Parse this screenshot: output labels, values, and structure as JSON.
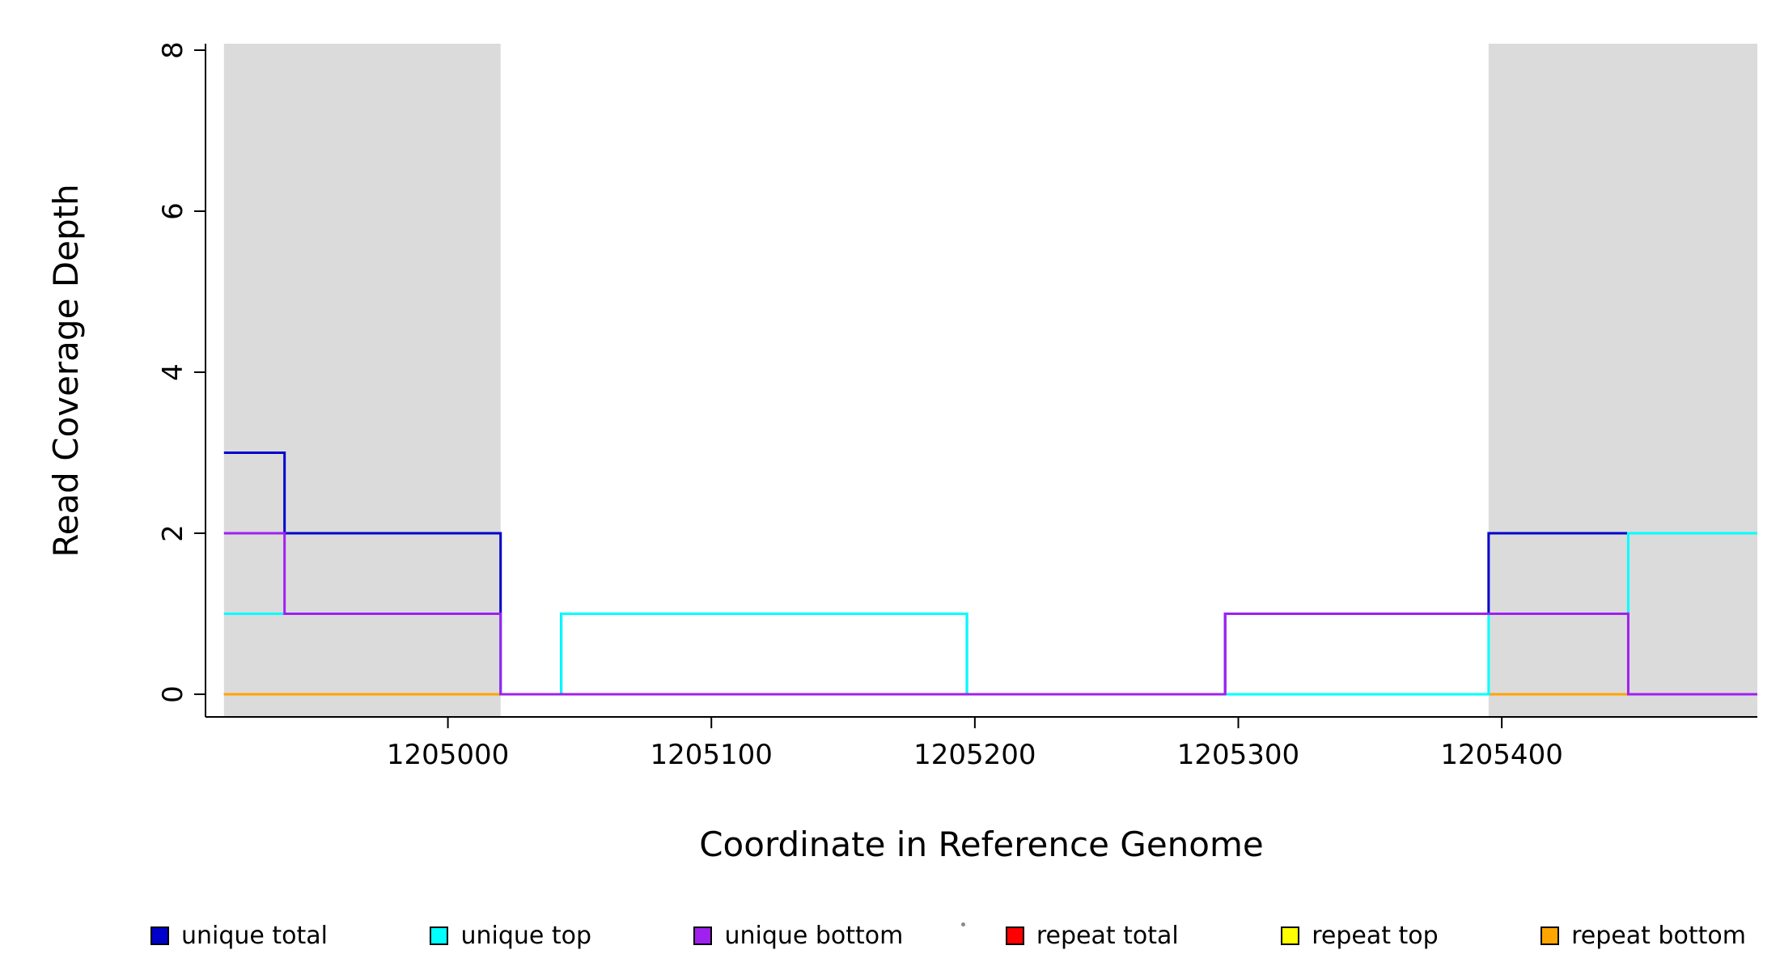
{
  "chart_data": {
    "type": "line",
    "step": true,
    "title": "",
    "xlabel": "Coordinate in Reference Genome",
    "ylabel": "Read Coverage Depth",
    "xlim": [
      1204908,
      1205497
    ],
    "ylim": [
      0,
      8
    ],
    "xticks": [
      1205000,
      1205100,
      1205200,
      1205300,
      1205400
    ],
    "yticks": [
      0,
      2,
      4,
      6,
      8
    ],
    "grid": false,
    "legend_position": "bottom",
    "shaded_regions": [
      {
        "x0": 1204915,
        "x1": 1205020,
        "color": "#DBDBDB"
      },
      {
        "x0": 1205395,
        "x1": 1205497,
        "color": "#DBDBDB"
      }
    ],
    "series": [
      {
        "name": "repeat total",
        "color": "#FF0000",
        "steps": [
          [
            1204915,
            0
          ],
          [
            1205497,
            0
          ]
        ]
      },
      {
        "name": "repeat top",
        "color": "#FFFF00",
        "steps": [
          [
            1204915,
            0
          ],
          [
            1205497,
            0
          ]
        ]
      },
      {
        "name": "repeat bottom",
        "color": "#FFA500",
        "steps": [
          [
            1204915,
            0
          ],
          [
            1205497,
            0
          ]
        ]
      },
      {
        "name": "unique total",
        "color": "#0000CD",
        "steps": [
          [
            1204915,
            3
          ],
          [
            1204938,
            2
          ],
          [
            1205020,
            0
          ],
          [
            1205043,
            1
          ],
          [
            1205197,
            0
          ],
          [
            1205295,
            1
          ],
          [
            1205395,
            2
          ],
          [
            1205497,
            2
          ]
        ]
      },
      {
        "name": "unique top",
        "color": "#00FFFF",
        "steps": [
          [
            1204915,
            1
          ],
          [
            1205020,
            0
          ],
          [
            1205043,
            1
          ],
          [
            1205197,
            0
          ],
          [
            1205395,
            1
          ],
          [
            1205448,
            2
          ],
          [
            1205497,
            2
          ]
        ]
      },
      {
        "name": "unique bottom",
        "color": "#A020F0",
        "steps": [
          [
            1204915,
            2
          ],
          [
            1204938,
            1
          ],
          [
            1205020,
            0
          ],
          [
            1205295,
            1
          ],
          [
            1205448,
            0
          ],
          [
            1205497,
            0
          ]
        ]
      }
    ],
    "legend": [
      {
        "label": "unique total",
        "color": "#0000CD"
      },
      {
        "label": "unique top",
        "color": "#00FFFF"
      },
      {
        "label": "unique bottom",
        "color": "#A020F0"
      },
      {
        "label": "repeat total",
        "color": "#FF0000"
      },
      {
        "label": "repeat top",
        "color": "#FFFF00"
      },
      {
        "label": "repeat bottom",
        "color": "#FFA500"
      }
    ]
  },
  "colors": {
    "axis": "#000000",
    "text": "#000000",
    "shade": "#DBDBDB",
    "background": "#FFFFFF"
  }
}
